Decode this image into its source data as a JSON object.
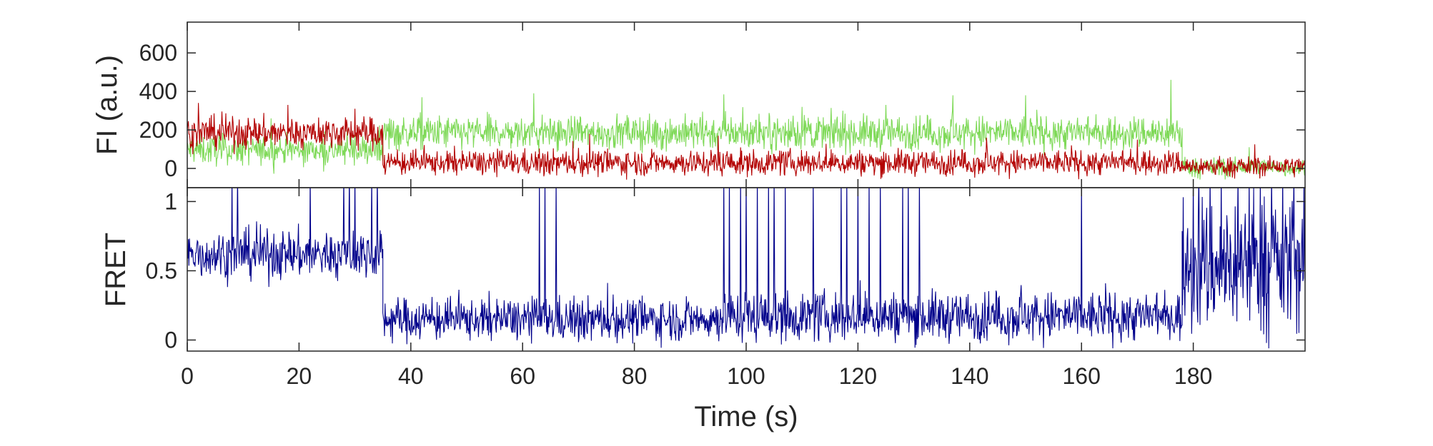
{
  "chart_data": [
    {
      "type": "line",
      "title": "",
      "xlabel": "",
      "ylabel": "FI (a.u.)",
      "xlim": [
        0,
        200
      ],
      "ylim": [
        -100,
        760
      ],
      "yticks": [
        0,
        200,
        400,
        600
      ],
      "ytick_labels": [
        "0",
        "200",
        "400",
        "600"
      ],
      "xticks": [
        0,
        20,
        40,
        60,
        80,
        100,
        120,
        140,
        160,
        180
      ],
      "grid": false,
      "legend": "none",
      "colors": {
        "donor": "#7ed957",
        "acceptor": "#b30000"
      },
      "series": [
        {
          "color": "#7ed957",
          "segments": [
            {
              "x0": 0,
              "x1": 35,
              "mean": 95,
              "noise": 70,
              "peaks": [
                [
                  7,
                  110
                ],
                [
                  15,
                  260
                ],
                [
                  30,
                  175
                ]
              ]
            },
            {
              "x0": 35,
              "x1": 178,
              "mean": 185,
              "noise": 80,
              "peaks": [
                [
                  42,
                  370
                ],
                [
                  62,
                  390
                ],
                [
                  96,
                  385
                ],
                [
                  110,
                  320
                ],
                [
                  125,
                  330
                ],
                [
                  137,
                  380
                ],
                [
                  150,
                  380
                ],
                [
                  176,
                  460
                ]
              ]
            },
            {
              "x0": 178,
              "x1": 200,
              "mean": 5,
              "noise": 45,
              "peaks": [
                [
                  190,
                  110
                ]
              ]
            }
          ]
        },
        {
          "color": "#b30000",
          "segments": [
            {
              "x0": 0,
              "x1": 35,
              "mean": 185,
              "noise": 75,
              "peaks": [
                [
                  2,
                  340
                ],
                [
                  18,
                  330
                ],
                [
                  30,
                  310
                ]
              ]
            },
            {
              "x0": 35,
              "x1": 178,
              "mean": 30,
              "noise": 60,
              "peaks": [
                [
                  72,
                  180
                ],
                [
                  95,
                  170
                ],
                [
                  143,
                  160
                ],
                [
                  170,
                  150
                ]
              ]
            },
            {
              "x0": 178,
              "x1": 200,
              "mean": 10,
              "noise": 45,
              "peaks": [
                [
                  191,
                  125
                ]
              ]
            }
          ]
        }
      ]
    },
    {
      "type": "line",
      "title": "",
      "xlabel": "Time (s)",
      "ylabel": "FRET",
      "xlim": [
        0,
        200
      ],
      "ylim": [
        -0.08,
        1.1
      ],
      "yticks": [
        0,
        0.5,
        1
      ],
      "ytick_labels": [
        "0",
        "0.5",
        "1"
      ],
      "xticks": [
        0,
        20,
        40,
        60,
        80,
        100,
        120,
        140,
        160,
        180
      ],
      "xtick_labels": [
        "0",
        "20",
        "40",
        "60",
        "80",
        "100",
        "120",
        "140",
        "160",
        "180"
      ],
      "grid": false,
      "legend": "none",
      "series": [
        {
          "color": "#00008b",
          "segments": [
            {
              "x0": 0,
              "x1": 35,
              "mean": 0.62,
              "noise": 0.16,
              "spikes": [
                8,
                9,
                22,
                28,
                29,
                30,
                33,
                34
              ]
            },
            {
              "x0": 35,
              "x1": 95,
              "mean": 0.15,
              "noise": 0.14,
              "spikes": [
                63,
                64,
                66
              ]
            },
            {
              "x0": 95,
              "x1": 178,
              "mean": 0.17,
              "noise": 0.16,
              "spikes": [
                96,
                97,
                99,
                100,
                102,
                104,
                105,
                107,
                112,
                117,
                118,
                120,
                122,
                124,
                128,
                129,
                131,
                160
              ]
            },
            {
              "x0": 178,
              "x1": 200,
              "mean": 0.55,
              "noise": 0.45,
              "spikes": [
                180,
                181,
                183,
                185,
                188,
                190,
                192,
                194,
                196,
                198
              ]
            }
          ]
        }
      ]
    }
  ]
}
